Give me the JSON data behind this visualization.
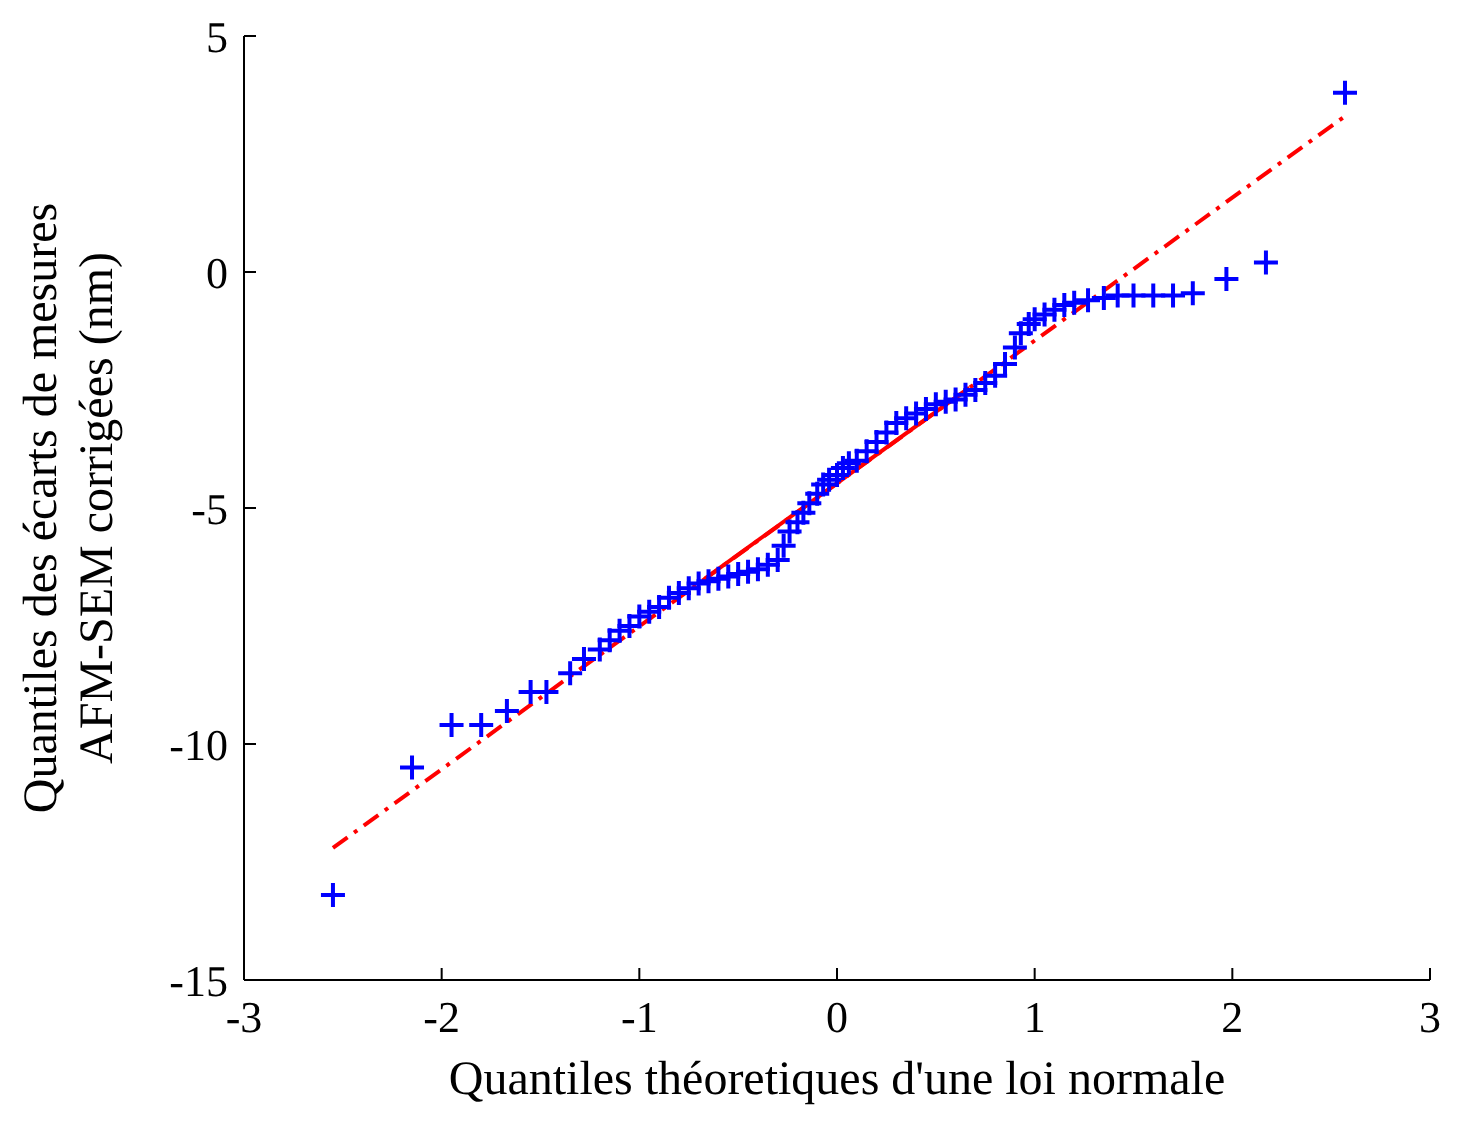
{
  "chart_data": {
    "type": "scatter",
    "xlabel": "Quantiles théoretiques d'une loi normale",
    "ylabel": "Quantiles des écarts de mesures\nAFM-SEM corrigées (nm)",
    "xlim": [
      -3,
      3
    ],
    "ylim": [
      -15,
      5
    ],
    "xticks": [
      -3,
      -2,
      -1,
      0,
      1,
      2,
      3
    ],
    "yticks": [
      -15,
      -10,
      -5,
      0,
      5
    ],
    "grid": false,
    "series": [
      {
        "type": "line",
        "color": "#ff0000",
        "line_style": "dashed",
        "x": [
          -2.55,
          2.57
        ],
        "values": [
          -12.2,
          3.3
        ]
      },
      {
        "type": "line",
        "color": "#ff0000",
        "line_style": "solid",
        "x": [
          -0.67,
          0.67
        ],
        "values": [
          -6.5,
          -2.45
        ]
      },
      {
        "color": "#0000ff",
        "marker": "cross",
        "x": [
          -2.55,
          -2.15,
          -1.95,
          -1.8,
          -1.67,
          -1.55,
          -1.47,
          -1.35,
          -1.28,
          -1.2,
          -1.15,
          -1.1,
          -1.05,
          -1.0,
          -0.95,
          -0.9,
          -0.85,
          -0.8,
          -0.75,
          -0.7,
          -0.65,
          -0.6,
          -0.55,
          -0.5,
          -0.45,
          -0.4,
          -0.35,
          -0.3,
          -0.27,
          -0.24,
          -0.2,
          -0.17,
          -0.14,
          -0.1,
          -0.07,
          -0.04,
          0.0,
          0.03,
          0.06,
          0.1,
          0.15,
          0.2,
          0.25,
          0.3,
          0.35,
          0.4,
          0.45,
          0.5,
          0.55,
          0.6,
          0.65,
          0.7,
          0.75,
          0.8,
          0.85,
          0.9,
          0.93,
          0.97,
          1.0,
          1.05,
          1.1,
          1.15,
          1.2,
          1.27,
          1.35,
          1.42,
          1.5,
          1.6,
          1.7,
          1.8,
          1.97,
          2.17,
          2.57
        ],
        "values": [
          -13.2,
          -10.5,
          -9.6,
          -9.6,
          -9.3,
          -8.9,
          -8.9,
          -8.5,
          -8.2,
          -8.0,
          -7.8,
          -7.6,
          -7.5,
          -7.3,
          -7.2,
          -7.1,
          -6.9,
          -6.8,
          -6.7,
          -6.6,
          -6.55,
          -6.5,
          -6.45,
          -6.4,
          -6.35,
          -6.3,
          -6.2,
          -6.1,
          -5.8,
          -5.5,
          -5.3,
          -5.1,
          -4.9,
          -4.7,
          -4.5,
          -4.4,
          -4.3,
          -4.15,
          -4.05,
          -4.0,
          -3.8,
          -3.6,
          -3.4,
          -3.2,
          -3.1,
          -3.0,
          -2.9,
          -2.8,
          -2.75,
          -2.7,
          -2.6,
          -2.5,
          -2.35,
          -2.2,
          -1.95,
          -1.6,
          -1.3,
          -1.1,
          -1.0,
          -0.9,
          -0.8,
          -0.7,
          -0.65,
          -0.6,
          -0.55,
          -0.5,
          -0.5,
          -0.5,
          -0.5,
          -0.45,
          -0.15,
          0.2,
          3.8
        ]
      }
    ]
  }
}
